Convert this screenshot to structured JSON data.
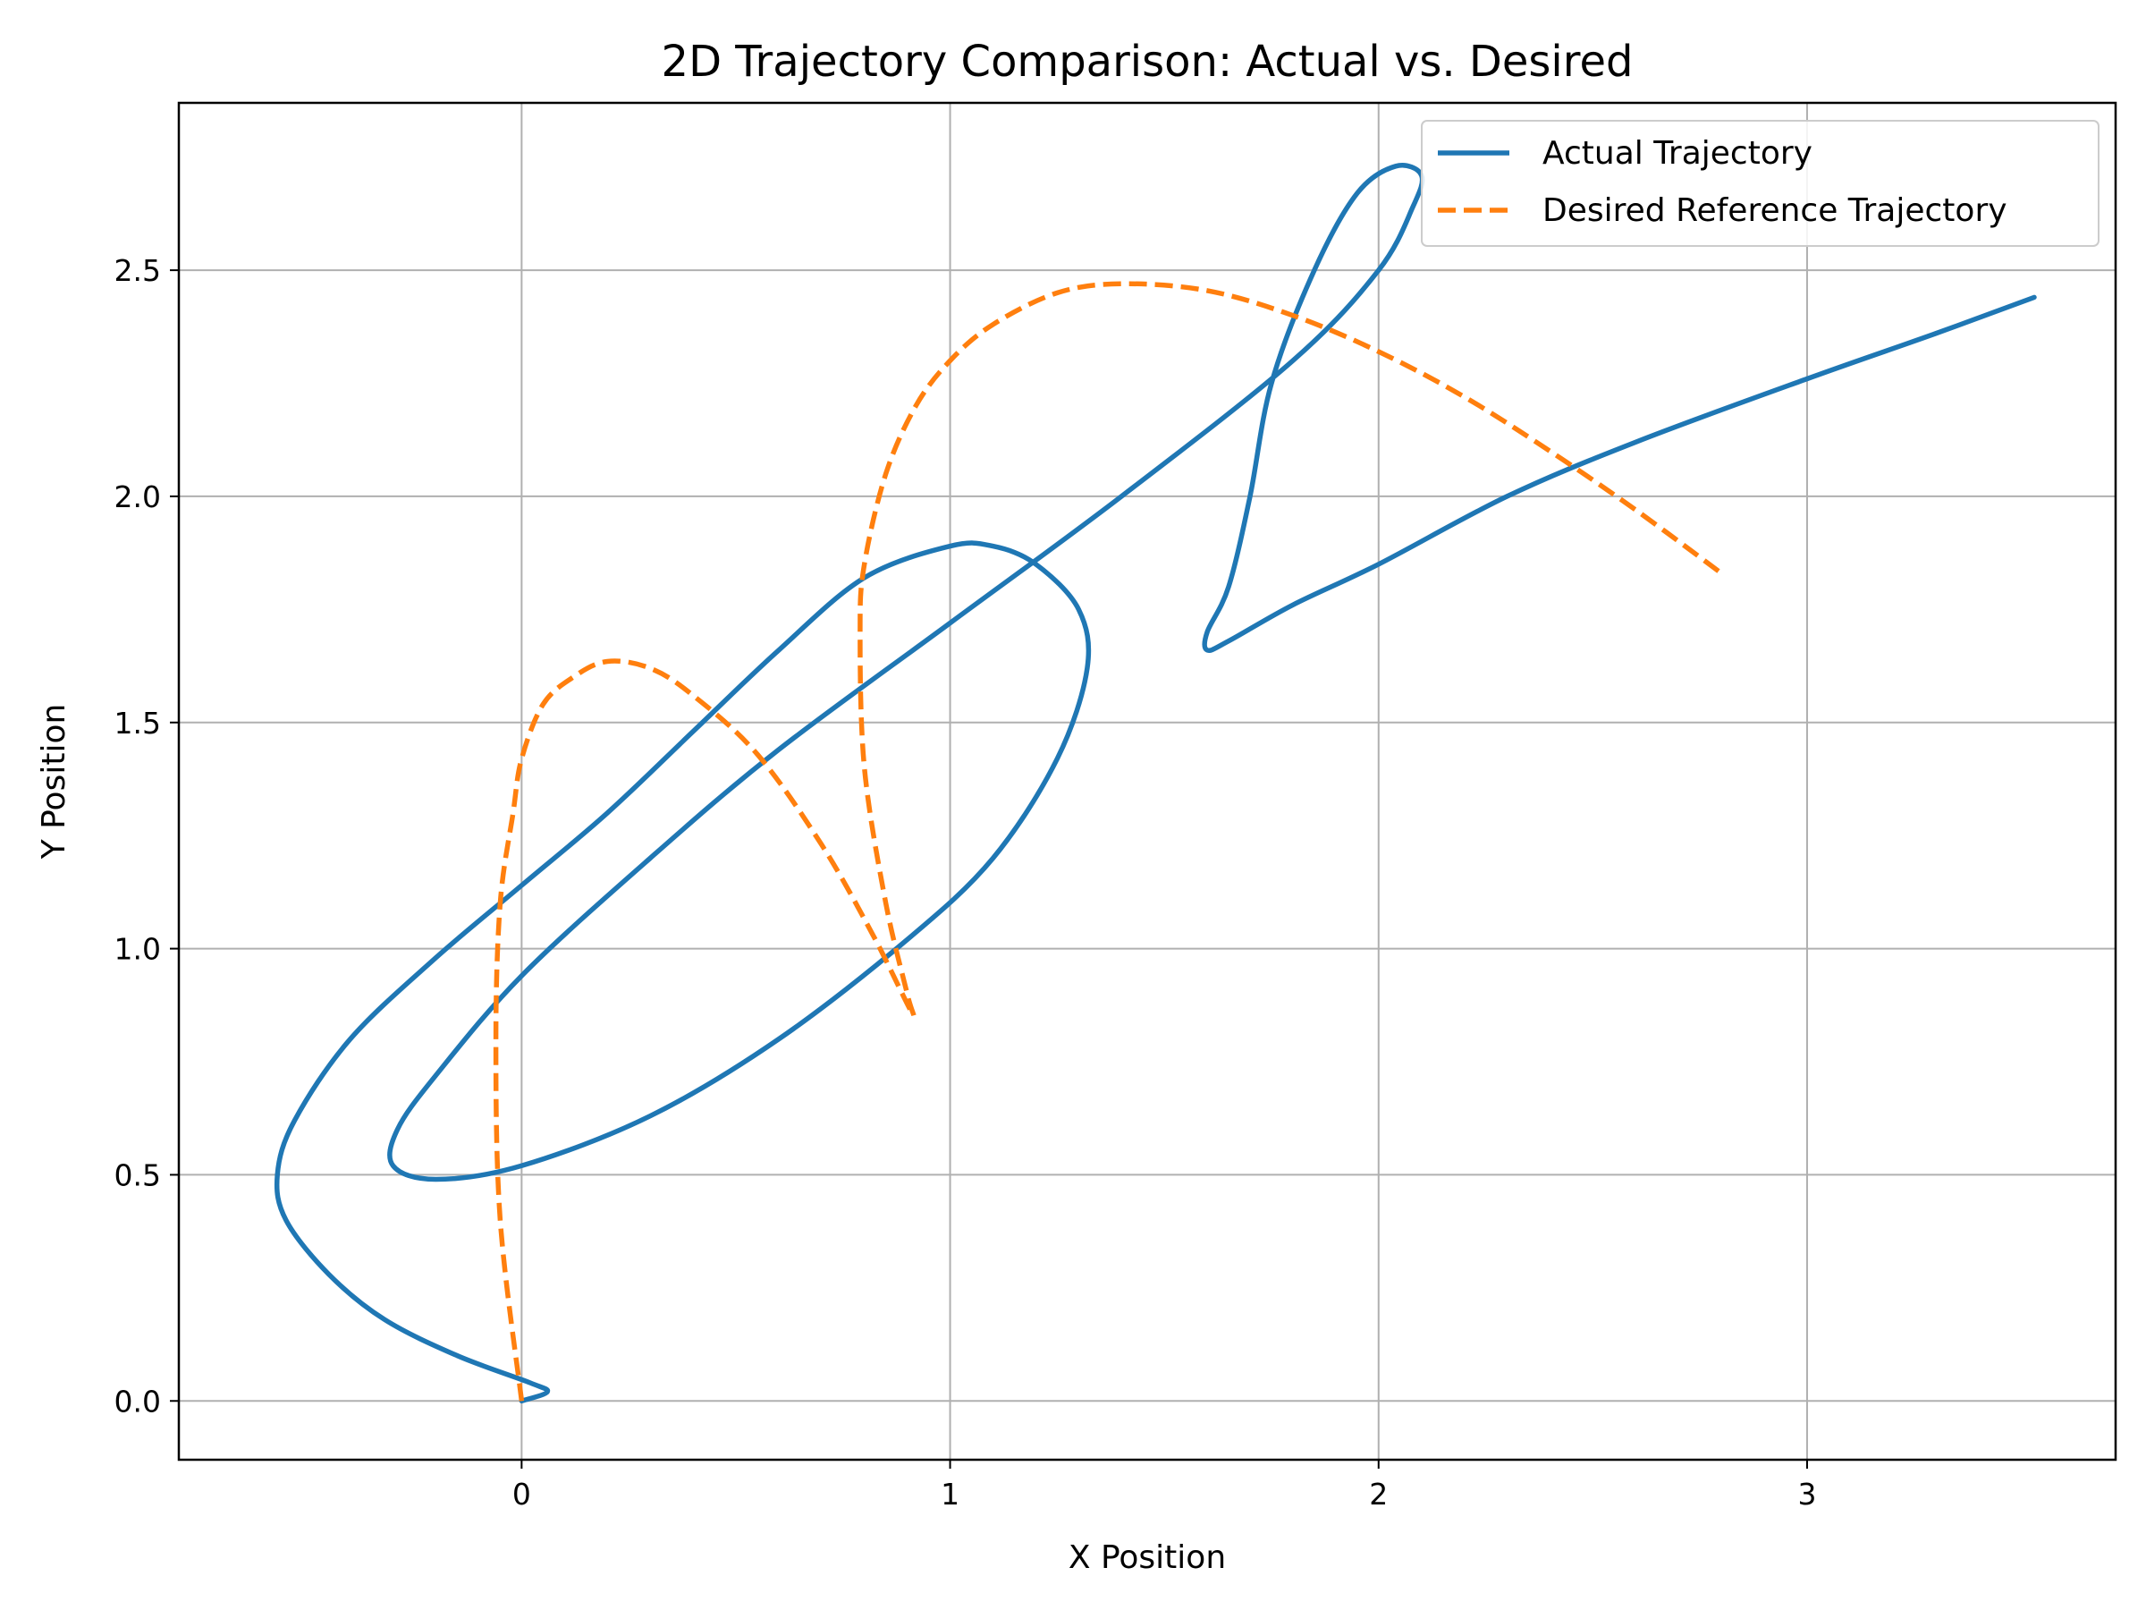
{
  "chart_data": {
    "type": "line",
    "title": "2D Trajectory Comparison: Actual vs. Desired",
    "xlabel": "X Position",
    "ylabel": "Y Position",
    "xlim": [
      -0.8,
      3.72
    ],
    "ylim": [
      -0.13,
      2.87
    ],
    "xticks": [
      0,
      1,
      2,
      3
    ],
    "yticks": [
      0.0,
      0.5,
      1.0,
      1.5,
      2.0,
      2.5
    ],
    "xtick_labels": [
      "0",
      "1",
      "2",
      "3"
    ],
    "ytick_labels": [
      "0.0",
      "0.5",
      "1.0",
      "1.5",
      "2.0",
      "2.5"
    ],
    "grid": true,
    "legend_position": "upper right",
    "series": [
      {
        "name": "Actual Trajectory",
        "color": "#1f77b4",
        "style": "solid",
        "points": [
          [
            0.0,
            0.0
          ],
          [
            0.06,
            0.02
          ],
          [
            0.02,
            0.04
          ],
          [
            -0.15,
            0.1
          ],
          [
            -0.32,
            0.18
          ],
          [
            -0.45,
            0.28
          ],
          [
            -0.55,
            0.4
          ],
          [
            -0.57,
            0.5
          ],
          [
            -0.53,
            0.62
          ],
          [
            -0.4,
            0.8
          ],
          [
            -0.2,
            0.98
          ],
          [
            0.0,
            1.14
          ],
          [
            0.2,
            1.3
          ],
          [
            0.4,
            1.48
          ],
          [
            0.6,
            1.66
          ],
          [
            0.8,
            1.82
          ],
          [
            1.0,
            1.89
          ],
          [
            1.1,
            1.89
          ],
          [
            1.2,
            1.85
          ],
          [
            1.3,
            1.75
          ],
          [
            1.32,
            1.62
          ],
          [
            1.25,
            1.42
          ],
          [
            1.1,
            1.2
          ],
          [
            0.9,
            1.02
          ],
          [
            0.6,
            0.8
          ],
          [
            0.3,
            0.63
          ],
          [
            0.0,
            0.52
          ],
          [
            -0.2,
            0.49
          ],
          [
            -0.3,
            0.52
          ],
          [
            -0.29,
            0.6
          ],
          [
            -0.2,
            0.72
          ],
          [
            0.0,
            0.94
          ],
          [
            0.3,
            1.2
          ],
          [
            0.6,
            1.44
          ],
          [
            1.0,
            1.72
          ],
          [
            1.4,
            2.0
          ],
          [
            1.8,
            2.3
          ],
          [
            2.0,
            2.5
          ],
          [
            2.08,
            2.64
          ],
          [
            2.1,
            2.71
          ],
          [
            2.04,
            2.73
          ],
          [
            1.95,
            2.67
          ],
          [
            1.85,
            2.5
          ],
          [
            1.75,
            2.25
          ],
          [
            1.7,
            2.0
          ],
          [
            1.65,
            1.8
          ],
          [
            1.6,
            1.7
          ],
          [
            1.6,
            1.66
          ],
          [
            1.65,
            1.68
          ],
          [
            1.8,
            1.76
          ],
          [
            2.0,
            1.85
          ],
          [
            2.3,
            2.0
          ],
          [
            2.6,
            2.12
          ],
          [
            3.0,
            2.26
          ],
          [
            3.3,
            2.36
          ],
          [
            3.53,
            2.44
          ]
        ]
      },
      {
        "name": "Desired Reference Trajectory",
        "color": "#ff7f0e",
        "style": "dashed",
        "points": [
          [
            0.0,
            0.0
          ],
          [
            -0.05,
            0.4
          ],
          [
            -0.06,
            0.8
          ],
          [
            -0.05,
            1.1
          ],
          [
            -0.02,
            1.3
          ],
          [
            0.0,
            1.42
          ],
          [
            0.05,
            1.54
          ],
          [
            0.12,
            1.6
          ],
          [
            0.2,
            1.635
          ],
          [
            0.3,
            1.62
          ],
          [
            0.4,
            1.56
          ],
          [
            0.55,
            1.43
          ],
          [
            0.7,
            1.23
          ],
          [
            0.82,
            1.03
          ],
          [
            0.91,
            0.86
          ],
          [
            0.9,
            0.9
          ],
          [
            0.85,
            1.1
          ],
          [
            0.8,
            1.4
          ],
          [
            0.79,
            1.7
          ],
          [
            0.8,
            1.85
          ],
          [
            0.85,
            2.05
          ],
          [
            0.92,
            2.2
          ],
          [
            1.0,
            2.3
          ],
          [
            1.1,
            2.38
          ],
          [
            1.25,
            2.45
          ],
          [
            1.4,
            2.47
          ],
          [
            1.6,
            2.455
          ],
          [
            1.8,
            2.4
          ],
          [
            2.0,
            2.32
          ],
          [
            2.2,
            2.22
          ],
          [
            2.4,
            2.1
          ],
          [
            2.6,
            1.97
          ],
          [
            2.8,
            1.83
          ]
        ]
      }
    ]
  }
}
